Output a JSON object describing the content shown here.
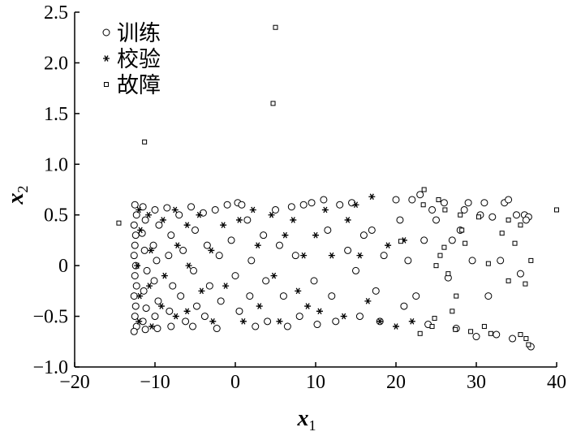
{
  "chart_data": {
    "type": "scatter",
    "xlabel": {
      "text": "x",
      "sub": "1"
    },
    "ylabel": {
      "text": "x",
      "sub": "2"
    },
    "xlim": [
      -20,
      40
    ],
    "xticks": [
      {
        "value": -20,
        "label": "−20"
      },
      {
        "value": -10,
        "label": "−10"
      },
      0,
      10,
      20,
      30,
      40
    ],
    "ylim": [
      -1.0,
      2.5
    ],
    "yticks": [
      {
        "value": -1.0,
        "label": "−1.0"
      },
      {
        "value": -0.5,
        "label": "−0.5"
      },
      0,
      0.5,
      {
        "value": 1.0,
        "label": "1.0"
      },
      1.5,
      {
        "value": 2.0,
        "label": "2.0"
      },
      2.5
    ],
    "legend": "upper left",
    "series": [
      {
        "name": "训练",
        "marker": "circle",
        "color": "#000000",
        "x": [
          -12.5,
          -12.3,
          -12.6,
          -12.4,
          -12.5,
          -12.6,
          -12.4,
          -12.5,
          -12.3,
          -12.6,
          -12.4,
          -12.5,
          -12.3,
          -12.6,
          -11.5,
          -11.2,
          -11.6,
          -11.3,
          -11.0,
          -11.4,
          -11.1,
          -11.5,
          -11.2,
          -10,
          -9.5,
          -10.2,
          -9.8,
          -10.1,
          -9.6,
          -10,
          -9.7,
          -8.5,
          -8,
          -8.3,
          -7.8,
          -8.2,
          -8,
          -7,
          -6.5,
          -6.8,
          -6.2,
          -5.5,
          -5,
          -5.2,
          -4.8,
          -5.3,
          -4,
          -3.5,
          -3.2,
          -3.8,
          -2.5,
          -2,
          -1.8,
          -2.3,
          -1,
          -0.5,
          0,
          0.5,
          0.3,
          0.8,
          1.5,
          2,
          1.8,
          2.5,
          3.5,
          3.8,
          4,
          5,
          5.5,
          6,
          6.5,
          7,
          7.5,
          8,
          8.5,
          9.5,
          9.8,
          10.2,
          11,
          11.5,
          12,
          12.5,
          13,
          14,
          14.5,
          15,
          15.5,
          16,
          17,
          17.5,
          18,
          18.5,
          20,
          20.5,
          21,
          21.5,
          22,
          22.5,
          23,
          23.5,
          24,
          24.5,
          25,
          26,
          26.5,
          27,
          27.5,
          28,
          28.5,
          29,
          29.5,
          30,
          30.5,
          31,
          31.5,
          32,
          32.5,
          33,
          33.5,
          34,
          34.5,
          35,
          35.5,
          36,
          36.5,
          36.8,
          36.2
        ],
        "y": [
          0.6,
          0.5,
          0.4,
          0.3,
          0.2,
          0.1,
          0.0,
          -0.1,
          -0.2,
          -0.3,
          -0.4,
          -0.5,
          -0.6,
          -0.65,
          0.58,
          0.45,
          0.32,
          0.15,
          -0.05,
          -0.25,
          -0.42,
          -0.55,
          -0.63,
          0.55,
          0.4,
          0.2,
          0.05,
          -0.15,
          -0.35,
          -0.5,
          -0.62,
          0.57,
          0.3,
          0.1,
          -0.2,
          -0.45,
          -0.6,
          0.5,
          0.15,
          -0.3,
          -0.55,
          0.58,
          0.35,
          -0.05,
          -0.4,
          -0.6,
          0.52,
          0.2,
          -0.2,
          -0.5,
          0.55,
          0.1,
          -0.35,
          -0.62,
          0.6,
          0.25,
          -0.1,
          -0.45,
          0.62,
          0.6,
          0.45,
          0.05,
          -0.3,
          -0.6,
          0.3,
          -0.15,
          -0.55,
          0.55,
          0.2,
          -0.3,
          -0.6,
          0.58,
          0.1,
          -0.5,
          0.6,
          0.62,
          -0.15,
          -0.58,
          0.65,
          0.35,
          -0.3,
          -0.55,
          0.6,
          0.15,
          0.62,
          -0.05,
          -0.5,
          0.3,
          0.35,
          -0.25,
          -0.55,
          0.1,
          0.65,
          0.45,
          -0.4,
          0.05,
          0.65,
          -0.3,
          0.7,
          0.25,
          -0.58,
          0.55,
          0.45,
          0.62,
          -0.12,
          0.25,
          -0.62,
          0.35,
          0.55,
          0.62,
          0.05,
          -0.7,
          0.5,
          0.62,
          -0.3,
          0.48,
          -0.68,
          0.05,
          0.62,
          0.65,
          -0.72,
          0.5,
          -0.08,
          0.5,
          0.48,
          -0.8,
          0.45
        ]
      },
      {
        "name": "校验",
        "marker": "asterisk",
        "color": "#000000",
        "x": [
          -12,
          -11.8,
          -12.2,
          -11.9,
          -12,
          -10.8,
          -10.5,
          -10.7,
          -10.4,
          -9,
          -8.8,
          -9.2,
          -7.5,
          -7.2,
          -7.4,
          -6,
          -5.8,
          -6,
          -4.5,
          -4.2,
          -3,
          -2.8,
          -1.5,
          -1.2,
          0.5,
          1,
          2.2,
          2.8,
          3,
          4.5,
          4.8,
          5.5,
          6.2,
          7.2,
          7.8,
          8.5,
          9,
          10,
          10.5,
          11.2,
          12,
          13.5,
          14,
          15,
          15.5,
          16.5,
          17,
          18,
          19,
          20,
          21,
          22
        ],
        "y": [
          0.55,
          0.35,
          0.0,
          -0.3,
          -0.55,
          0.5,
          0.15,
          -0.2,
          -0.6,
          0.45,
          -0.1,
          -0.4,
          0.55,
          0.2,
          -0.5,
          0.4,
          0.0,
          -0.45,
          0.5,
          -0.25,
          0.15,
          -0.55,
          0.4,
          -0.2,
          0.45,
          -0.55,
          0.55,
          0.2,
          -0.4,
          0.5,
          -0.1,
          -0.55,
          0.3,
          0.45,
          -0.25,
          0.1,
          -0.4,
          0.3,
          -0.45,
          0.55,
          0.1,
          -0.5,
          0.45,
          0.6,
          0.1,
          -0.35,
          0.68,
          -0.55,
          0.2,
          -0.6,
          0.25,
          -0.55
        ]
      },
      {
        "name": "故障",
        "marker": "square",
        "color": "#000000",
        "x": [
          -14.5,
          -11.3,
          4.7,
          5,
          40,
          36.8,
          36.5,
          36.2,
          35.5,
          34,
          36.1,
          34.8,
          34,
          31.5,
          30.3,
          28.6,
          28,
          28.2,
          27.5,
          27,
          26.5,
          26,
          25.5,
          25,
          25.3,
          23.5,
          23.4,
          24.5,
          24.8,
          23,
          20.6,
          29.3,
          31.8,
          35.5,
          33.2,
          27.4,
          31,
          26.1
        ],
        "y": [
          0.42,
          1.22,
          1.6,
          2.35,
          0.55,
          0.05,
          -0.78,
          -0.72,
          -0.68,
          -0.15,
          -0.18,
          0.22,
          0.45,
          0.02,
          0.48,
          0.22,
          0.5,
          0.35,
          -0.3,
          -0.45,
          -0.08,
          0.18,
          0.1,
          0.0,
          0.65,
          0.75,
          0.6,
          -0.6,
          -0.52,
          -0.67,
          0.24,
          -0.65,
          -0.67,
          0.4,
          0.32,
          -0.63,
          -0.6,
          0.55
        ]
      }
    ]
  }
}
